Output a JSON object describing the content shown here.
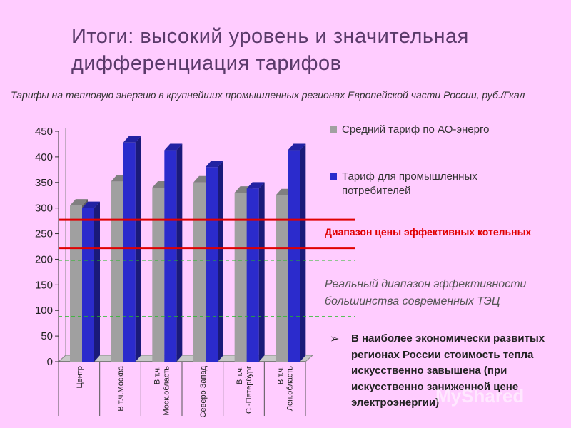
{
  "slide": {
    "title": "Итоги: высокий уровень и значительная дифференциация тарифов",
    "subtitle": "Тарифы на тепловую энергию в крупнейших промышленных регионах Европейской части России, руб./Гкал",
    "annotation_red": "Диапазон цены эффективных котельных",
    "annotation_green": "Реальный диапазон эффективности большинства современных ТЭЦ",
    "note": "В наиболее экономически развитых регионах России стоимость тепла искусственно завышена (при искусственно заниженной цене электроэнергии)",
    "bullet_icon": "check-arrow-icon",
    "watermark": "MyShared"
  },
  "chart_data": {
    "type": "bar",
    "categories": [
      "Центр",
      "В т.ч.Москва",
      "В т.ч. Моск.область",
      "Северо Запад",
      "В т.ч. С.-Петербург",
      "В т.ч. Лен.область"
    ],
    "series": [
      {
        "name": "Средний тариф по АО-энерго",
        "values": [
          305,
          352,
          340,
          350,
          330,
          325
        ],
        "color": "#a0a0a0"
      },
      {
        "name": "Тариф для промышленных потребителей",
        "values": [
          300,
          428,
          413,
          380,
          338,
          413
        ],
        "color": "#2b2bcc"
      }
    ],
    "ylim": [
      0,
      450
    ],
    "yticks": [
      0,
      50,
      100,
      150,
      200,
      250,
      300,
      350,
      400,
      450
    ],
    "red_lines": [
      222,
      277
    ],
    "green_lines": [
      88,
      198
    ],
    "grid": false
  }
}
